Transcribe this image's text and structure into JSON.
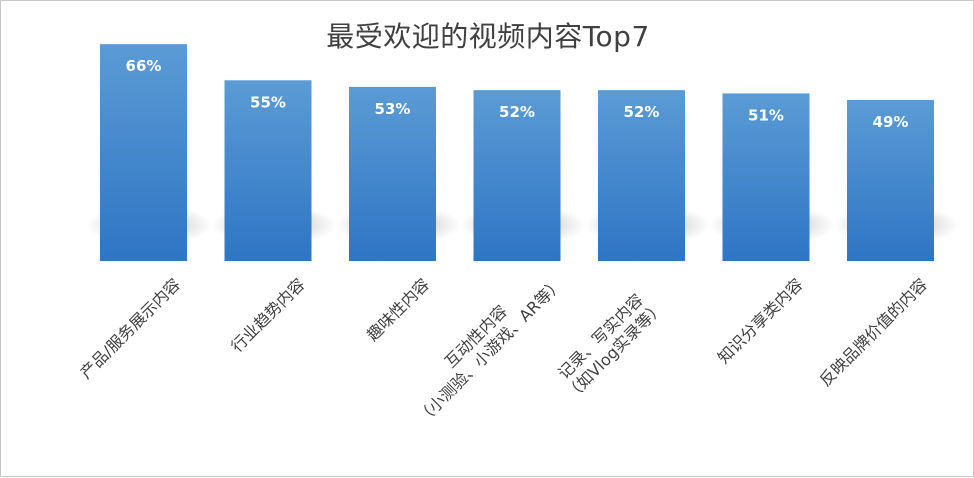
{
  "chart_data": {
    "type": "bar",
    "title": "最受欢迎的视频内容Top7",
    "categories": [
      [
        "产品/服务展示内容"
      ],
      [
        "行业趋势内容"
      ],
      [
        "趣味性内容"
      ],
      [
        "互动性内容",
        "（小测验、小游戏、AR等）"
      ],
      [
        "记录、写实内容",
        "（如Vlog实录等）"
      ],
      [
        "知识分享类内容"
      ],
      [
        "反映品牌价值的内容"
      ]
    ],
    "values": [
      66,
      55,
      53,
      52,
      52,
      51,
      49
    ],
    "data_labels": [
      "66%",
      "55%",
      "53%",
      "52%",
      "52%",
      "51%",
      "49%"
    ],
    "unit": "%",
    "ylim": [
      0,
      70
    ],
    "grid": false,
    "legend": "none",
    "colors": {
      "bar_top": "#5b9bd5",
      "bar_bottom": "#2e75c4",
      "label": "#ffffff",
      "axis_text": "#404040"
    }
  }
}
